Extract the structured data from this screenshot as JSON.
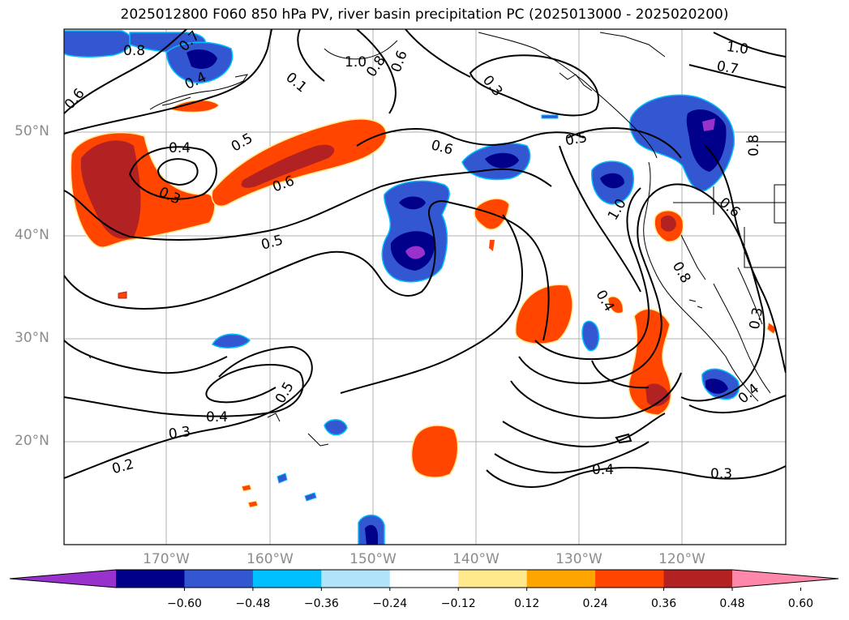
{
  "title": "2025012800 F060 850 hPa PV, river basin precipitation PC (2025013000 - 2025020200)",
  "lat_labels": [
    "50°N",
    "40°N",
    "30°N",
    "20°N"
  ],
  "lon_labels": [
    "170°W",
    "160°W",
    "150°W",
    "140°W",
    "130°W",
    "120°W"
  ],
  "colorbar": {
    "ticks": [
      "−0.60",
      "−0.48",
      "−0.36",
      "−0.24",
      "−0.12",
      "0.12",
      "0.24",
      "0.36",
      "0.48",
      "0.60"
    ],
    "colors": [
      "#9932cc",
      "#00008b",
      "#3357d1",
      "#00bfff",
      "#afe4fa",
      "#ffffff",
      "#ffe98c",
      "#ffa500",
      "#ff4500",
      "#b22222",
      "#ff88aa"
    ]
  },
  "contour_labels": [
    "0.8",
    "0.7",
    "0.4",
    "0.6",
    "0.1",
    "1.0",
    "0.8",
    "0.6",
    "0.3",
    "1.0",
    "0.7",
    "0.4",
    "0.5",
    "0.3",
    "0.6",
    "0.5",
    "0.6",
    "0.5",
    "1.0",
    "0.6",
    "0.8",
    "0.8",
    "0.3",
    "0.4",
    "0.5",
    "0.4",
    "0.3",
    "0.4",
    "0.3",
    "0.2",
    "0.4"
  ]
}
